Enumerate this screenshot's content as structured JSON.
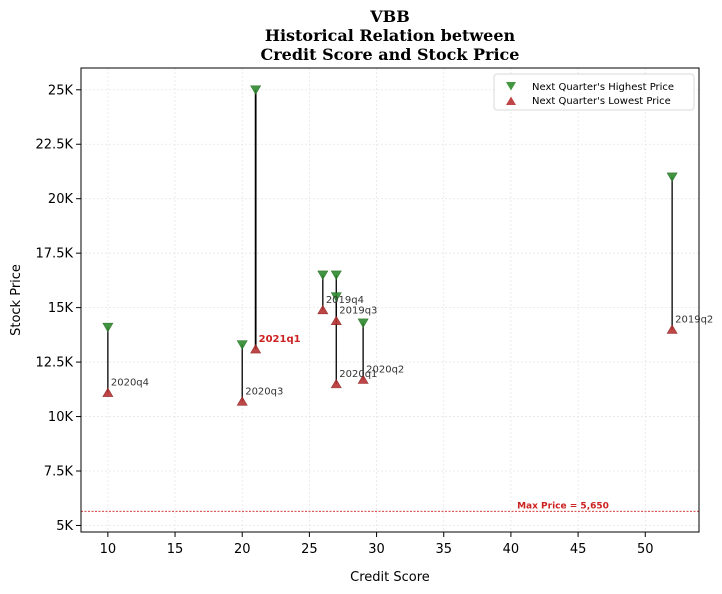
{
  "chart_data": {
    "type": "scatter",
    "title_lines": [
      "VBB",
      "Historical Relation between",
      "Credit Score and Stock Price"
    ],
    "xlabel": "Credit Score",
    "ylabel": "Stock Price",
    "xlim": [
      8,
      54
    ],
    "ylim": [
      4700,
      26000
    ],
    "xticks": [
      10,
      15,
      20,
      25,
      30,
      35,
      40,
      45,
      50
    ],
    "yticks": [
      {
        "value": 5000,
        "label": "5K"
      },
      {
        "value": 7500,
        "label": "7.5K"
      },
      {
        "value": 10000,
        "label": "10K"
      },
      {
        "value": 12500,
        "label": "12.5K"
      },
      {
        "value": 15000,
        "label": "15K"
      },
      {
        "value": 17500,
        "label": "17.5K"
      },
      {
        "value": 20000,
        "label": "20K"
      },
      {
        "value": 22500,
        "label": "22.5K"
      },
      {
        "value": 25000,
        "label": "25K"
      }
    ],
    "grid": true,
    "legend_position": "top-right",
    "colors": {
      "high": "#2e8b2e",
      "low": "#b83232",
      "connector": "#000000",
      "max_line": "#cc2222"
    },
    "series": [
      {
        "name": "Next Quarter's Highest Price",
        "marker": "triangle-down"
      },
      {
        "name": "Next Quarter's Lowest Price",
        "marker": "triangle-up"
      }
    ],
    "points": [
      {
        "label": "2020q4",
        "x": 10,
        "high": 14100,
        "low": 11100,
        "highlight": false
      },
      {
        "label": "2020q3",
        "x": 20,
        "high": 13300,
        "low": 10700,
        "highlight": false
      },
      {
        "label": "2021q1",
        "x": 21,
        "high": 25000,
        "low": 13100,
        "highlight": true
      },
      {
        "label": "2019q4",
        "x": 26,
        "high": 16500,
        "low": 14900,
        "highlight": false
      },
      {
        "label": "2019q3",
        "x": 27,
        "high": 15500,
        "low": 14400,
        "highlight": false
      },
      {
        "label": "2020q1",
        "x": 27,
        "high": 16500,
        "low": 11500,
        "highlight": false
      },
      {
        "label": "2020q2",
        "x": 29,
        "high": 14300,
        "low": 11700,
        "highlight": false
      },
      {
        "label": "2019q2",
        "x": 52,
        "high": 21000,
        "low": 14000,
        "highlight": false
      }
    ],
    "max_price": {
      "value": 5650,
      "label": "Max Price = 5,650"
    }
  }
}
